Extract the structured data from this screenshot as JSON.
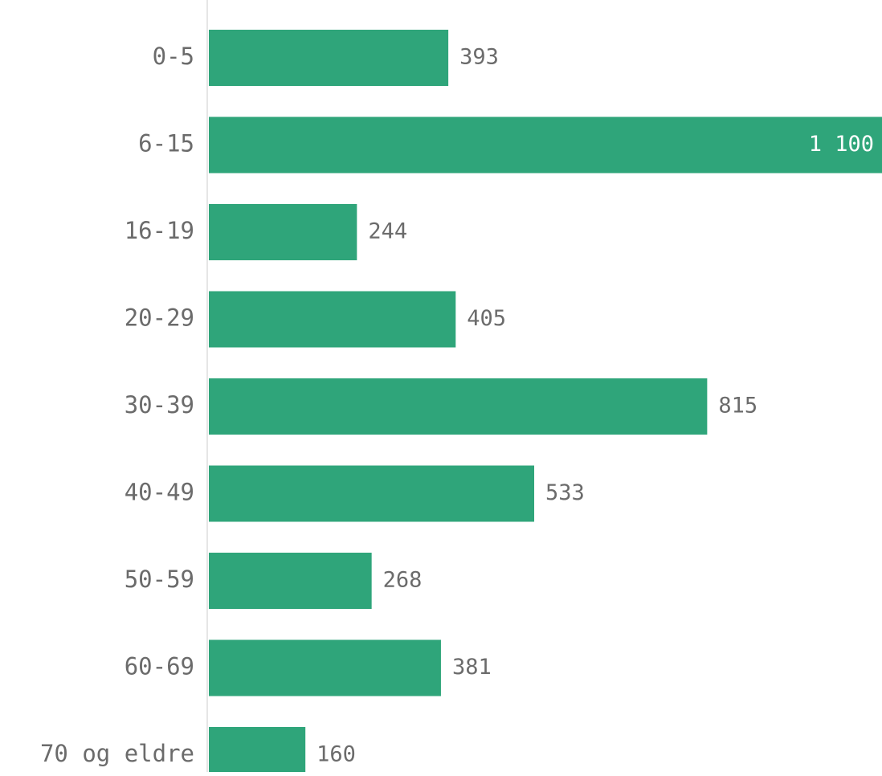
{
  "chart_data": {
    "type": "bar",
    "orientation": "horizontal",
    "categories": [
      "0-5",
      "6-15",
      "16-19",
      "20-29",
      "30-39",
      "40-49",
      "50-59",
      "60-69",
      "70 og eldre"
    ],
    "values": [
      393,
      1100,
      244,
      405,
      815,
      533,
      268,
      381,
      160
    ],
    "value_labels": [
      "393",
      "1 100",
      "244",
      "405",
      "815",
      "533",
      "268",
      "381",
      "160"
    ],
    "title": "",
    "xlabel": "",
    "ylabel": "",
    "xlim": [
      0,
      1100
    ],
    "grid": false,
    "legend": "none",
    "colors": {
      "bar": "#2fa57a",
      "label": "#6b6b6b",
      "inside_label": "#ffffff",
      "axis": "#e6e6e6"
    }
  }
}
